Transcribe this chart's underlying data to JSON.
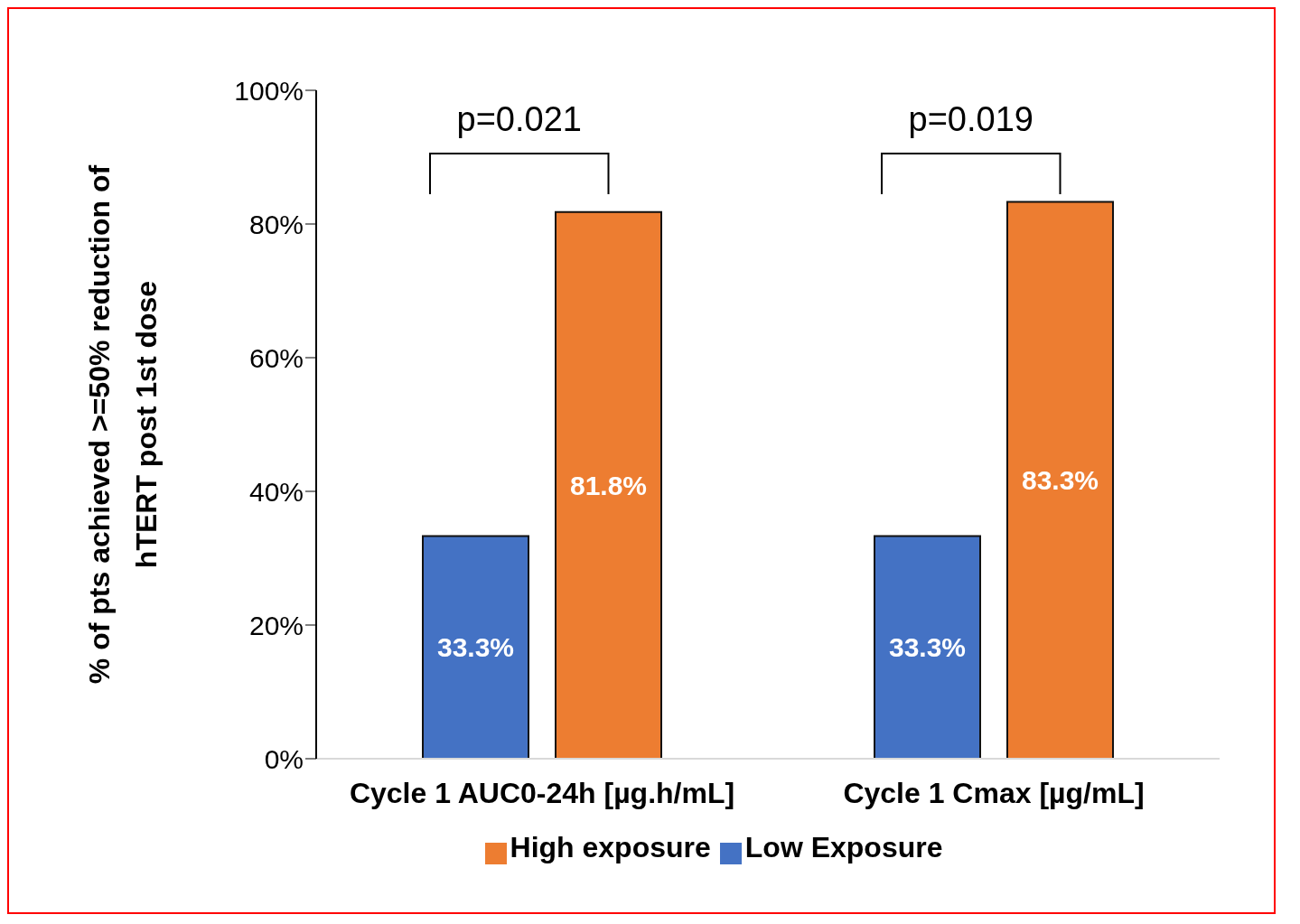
{
  "chart_data": {
    "type": "bar",
    "ylabel": "% of pts achieved >=50% reduction of hTERT post 1st dose",
    "categories": [
      "Cycle 1 AUC0-24h [µg.h/mL]",
      "Cycle 1 Cmax [µg/mL]"
    ],
    "series": [
      {
        "name": "Low Exposure",
        "color": "#4472c4",
        "values": [
          33.3,
          33.3
        ],
        "value_labels": [
          "33.3%",
          "33.3%"
        ]
      },
      {
        "name": "High exposure",
        "color": "#ed7d31",
        "values": [
          81.8,
          83.3
        ],
        "value_labels": [
          "81.8%",
          "83.3%"
        ]
      }
    ],
    "ylim": [
      0,
      100
    ],
    "yticks": [
      {
        "value": 0,
        "label": "0%"
      },
      {
        "value": 20,
        "label": "20%"
      },
      {
        "value": 40,
        "label": "40%"
      },
      {
        "value": 60,
        "label": "60%"
      },
      {
        "value": 80,
        "label": "80%"
      },
      {
        "value": 100,
        "label": "100%"
      }
    ],
    "annotations": [
      "p=0.021",
      "p=0.019"
    ],
    "grid": false,
    "legend": "bottom"
  }
}
